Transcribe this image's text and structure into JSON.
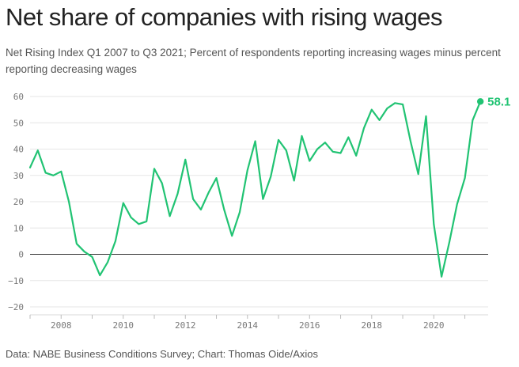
{
  "header": {
    "title": "Net share of companies with rising wages",
    "subtitle": "Net Rising Index Q1 2007 to Q3 2021; Percent of respondents reporting increasing wages minus percent reporting decreasing wages"
  },
  "footer": {
    "source": "Data: NABE Business Conditions Survey; Chart: Thomas Oide/Axios"
  },
  "chart_data": {
    "type": "line",
    "title": "Net share of companies with rising wages",
    "xlabel": "",
    "ylabel": "",
    "xlim": [
      2007,
      2021.75
    ],
    "ylim": [
      -20,
      60
    ],
    "y_ticks": [
      -20,
      -10,
      0,
      10,
      20,
      30,
      40,
      50,
      60
    ],
    "y_tick_labels": [
      "−20",
      "−10",
      "0",
      "10",
      "20",
      "30",
      "40",
      "50",
      "60"
    ],
    "x_ticks": [
      2008,
      2010,
      2012,
      2014,
      2016,
      2018,
      2020
    ],
    "x_tick_labels": [
      "2008",
      "2010",
      "2012",
      "2014",
      "2016",
      "2018",
      "2020"
    ],
    "grid": true,
    "color": "#21c373",
    "series": [
      {
        "name": "Net Rising Index",
        "x": [
          2007.0,
          2007.25,
          2007.5,
          2007.75,
          2008.0,
          2008.25,
          2008.5,
          2008.75,
          2009.0,
          2009.25,
          2009.5,
          2009.75,
          2010.0,
          2010.25,
          2010.5,
          2010.75,
          2011.0,
          2011.25,
          2011.5,
          2011.75,
          2012.0,
          2012.25,
          2012.5,
          2012.75,
          2013.0,
          2013.25,
          2013.5,
          2013.75,
          2014.0,
          2014.25,
          2014.5,
          2014.75,
          2015.0,
          2015.25,
          2015.5,
          2015.75,
          2016.0,
          2016.25,
          2016.5,
          2016.75,
          2017.0,
          2017.25,
          2017.5,
          2017.75,
          2018.0,
          2018.25,
          2018.5,
          2018.75,
          2019.0,
          2019.25,
          2019.5,
          2019.75,
          2020.0,
          2020.25,
          2020.5,
          2020.75,
          2021.0,
          2021.25,
          2021.5
        ],
        "values": [
          33,
          39.5,
          31,
          30,
          31.5,
          20,
          4,
          1,
          -1,
          -8,
          -3,
          5,
          19.5,
          14,
          11.5,
          12.5,
          32.5,
          27,
          14.5,
          23,
          36,
          21,
          17,
          23.5,
          29,
          17,
          7,
          16,
          32,
          43,
          21,
          29.5,
          43.5,
          39.5,
          28,
          45,
          35.5,
          40,
          42.5,
          39,
          38.5,
          44.5,
          37.5,
          48,
          55,
          51,
          55.5,
          57.5,
          57,
          43,
          30.5,
          52.5,
          11.5,
          -8.5,
          4.5,
          19,
          29,
          51,
          58.1
        ]
      }
    ],
    "end_label": "58.1"
  }
}
